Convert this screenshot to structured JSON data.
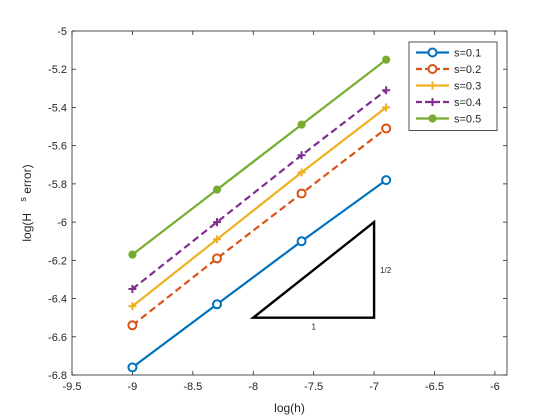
{
  "chart_data": {
    "type": "line",
    "xlabel": "log(h)",
    "ylabel_main": "log(H",
    "ylabel_sup": "s",
    "ylabel_tail": " error)",
    "xlim": [
      -9.5,
      -5.9
    ],
    "ylim": [
      -6.8,
      -5.0
    ],
    "xticks": [
      -9.5,
      -9,
      -8.5,
      -8,
      -7.5,
      -7,
      -6.5,
      -6
    ],
    "xtick_labels": [
      "-9.5",
      "-9",
      "-8.5",
      "-8",
      "-7.5",
      "-7",
      "-6.5",
      "-6"
    ],
    "yticks": [
      -6.8,
      -6.6,
      -6.4,
      -6.2,
      -6.0,
      -5.8,
      -5.6,
      -5.4,
      -5.2,
      -5.0
    ],
    "ytick_labels": [
      "-6.8",
      "-6.6",
      "-6.4",
      "-6.2",
      "-6",
      "-5.8",
      "-5.6",
      "-5.4",
      "-5.2",
      "-5"
    ],
    "grid": false,
    "legend_position": "top-right",
    "x": [
      -9.0,
      -8.3,
      -7.6,
      -6.9
    ],
    "series": [
      {
        "name": "s=0.1",
        "values": [
          -6.76,
          -6.43,
          -6.1,
          -5.78
        ],
        "color": "#0072BD",
        "dash": "solid",
        "marker": "circle"
      },
      {
        "name": "s=0.2",
        "values": [
          -6.54,
          -6.19,
          -5.85,
          -5.51
        ],
        "color": "#D95319",
        "dash": "dashed",
        "marker": "circle"
      },
      {
        "name": "s=0.3",
        "values": [
          -6.44,
          -6.09,
          -5.74,
          -5.4
        ],
        "color": "#EDB120",
        "dash": "solid",
        "marker": "plus"
      },
      {
        "name": "s=0.4",
        "values": [
          -6.35,
          -6.0,
          -5.65,
          -5.31
        ],
        "color": "#7E2F8E",
        "dash": "dashed",
        "marker": "plus"
      },
      {
        "name": "s=0.5",
        "values": [
          -6.17,
          -5.83,
          -5.49,
          -5.15
        ],
        "color": "#77AC30",
        "dash": "solid",
        "marker": "dot"
      }
    ],
    "slope_triangle": {
      "vertices": [
        [
          -8.0,
          -6.5
        ],
        [
          -7.0,
          -6.5
        ],
        [
          -7.0,
          -6.0
        ]
      ],
      "run_label": "1",
      "rise_label": "1/2",
      "color": "#000000"
    }
  }
}
